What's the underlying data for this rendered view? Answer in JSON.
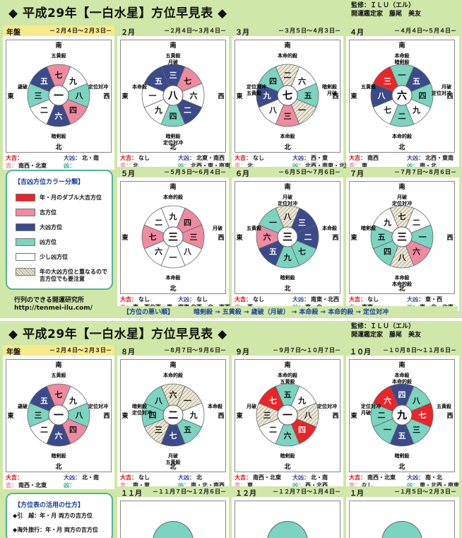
{
  "sheets": [
    {
      "title": "◆ 平成29年【一白水星】方位早見表 ◆",
      "supervisor_line1": "監修：ＩＬＵ（エル）",
      "supervisor_line2": "開運鑑定家　藤尾　美友"
    },
    {
      "title": "◆ 平成29年【一白水星】方位早見表 ◆",
      "supervisor_line1": "監修：ＩＬＵ（エル）",
      "supervisor_line2": "開運鑑定家　藤尾　美友"
    }
  ],
  "compass": {
    "north": "北",
    "south": "南",
    "east": "東",
    "west": "西"
  },
  "luck_keys": {
    "daikichi": "大吉：",
    "kichi": "吉：",
    "daikyo": "大凶：",
    "kyo": "凶："
  },
  "cells": [
    {
      "label": "年盤",
      "range": "－２月４日～２月３日－",
      "center": "一",
      "sectors": [
        "六",
        "二",
        "三",
        "五",
        "七",
        "九",
        "八",
        "四"
      ],
      "colors": [
        "navy",
        "white",
        "teal",
        "navy",
        "pink",
        "white",
        "teal",
        "pink"
      ],
      "daikichi": "",
      "kichi": "南西・北東",
      "daikyo": "北・南",
      "kyo": "",
      "labels": {
        "n": "暗剣殺",
        "s": "五黄殺",
        "e": "歳破",
        "w": "定位対冲"
      }
    },
    {
      "label": "２月",
      "range": "－２月４日～３月４日－",
      "center": "八",
      "sectors": [
        "四",
        "九",
        "一",
        "五",
        "三",
        "七",
        "六",
        "二"
      ],
      "colors": [
        "teal",
        "white",
        "white",
        "navy",
        "navy",
        "pink",
        "white",
        "navy"
      ],
      "daikichi": "なし",
      "kichi": "北",
      "daikyo": "北東・南西",
      "kyo": "北西・東・南東",
      "labels": {
        "n": "暗剣殺 定位対冲",
        "s": "五黄殺 月破",
        "e": "本命殺",
        "w": ""
      }
    },
    {
      "label": "３月",
      "range": "－３月５日～４月３日－",
      "center": "七",
      "sectors": [
        "三",
        "八",
        "九",
        "四",
        "二",
        "六",
        "五",
        "一"
      ],
      "colors": [
        "pink",
        "white",
        "navy",
        "teal",
        "hatch",
        "white",
        "teal",
        "hatch"
      ],
      "daikichi": "なし",
      "kichi": "北",
      "daikyo": "西・東",
      "kyo": "北西・南東・北東",
      "labels": {
        "n": "本命殺",
        "s": "本命的殺",
        "e": "定位対冲 五黄殺",
        "w": "暗剣殺 月破"
      }
    },
    {
      "label": "４月",
      "range": "－４月４日～５月４日－",
      "center": "六",
      "sectors": [
        "二",
        "七",
        "八",
        "三",
        "一",
        "五",
        "四",
        "九"
      ],
      "colors": [
        "teal",
        "white",
        "navy",
        "red",
        "teal",
        "navy",
        "teal",
        "white"
      ],
      "daikichi": "南西",
      "kichi": "東",
      "daikyo": "北西・東南",
      "kyo": "南・北",
      "labels": {
        "n": "本命的殺",
        "s": "本命殺 暗剣殺",
        "e": "五黄殺",
        "w": "月破 定位対冲"
      }
    },
    {
      "label": "５月",
      "range": "－５月５日～６月４日－",
      "center": "三",
      "sectors": [
        "一",
        "六",
        "七",
        "二",
        "九",
        "四",
        "三",
        "八"
      ],
      "colors": [
        "white",
        "white",
        "pink",
        "white",
        "white",
        "pink",
        "pink",
        "white"
      ],
      "daikichi": "なし",
      "kichi": "南・西北西・東・東南",
      "daikyo": "なし",
      "kyo": "北西・北・南西",
      "labels": {
        "n": "本命殺",
        "s": "本命的殺",
        "e": "",
        "w": "月破"
      }
    },
    {
      "label": "６月",
      "range": "－６月５日～７月６日－",
      "center": "三",
      "sectors": [
        "九",
        "五",
        "六",
        "一",
        "八",
        "三",
        "二",
        "七"
      ],
      "colors": [
        "teal",
        "navy",
        "pink",
        "teal",
        "hatch",
        "navy",
        "navy",
        "teal"
      ],
      "daikichi": "なし",
      "kichi": "西",
      "daikyo": "南東・北西",
      "kyo": "南・北",
      "labels": {
        "n": "暗剣殺",
        "s": "月破 定位対冲",
        "e": "五黄殺",
        "w": "本命殺"
      }
    },
    {
      "label": "７月",
      "range": "－７月７日～８月６日－",
      "center": "三",
      "sectors": [
        "八",
        "四",
        "五",
        "九",
        "七",
        "二",
        "一",
        "六"
      ],
      "colors": [
        "hatch",
        "teal",
        "teal",
        "white",
        "hatch",
        "white",
        "teal",
        "pink"
      ],
      "daikichi": "なし",
      "kichi": "南東",
      "daikyo": "東・西",
      "kyo": "南・北・北東",
      "labels": {
        "n": "本命殺 本命的殺",
        "s": "月破 定位対冲",
        "e": "暗剣殺",
        "w": ""
      }
    },
    {
      "label": "年盤",
      "range": "－２月４日～２月３日－",
      "center": "一",
      "sectors": [
        "六",
        "二",
        "三",
        "五",
        "七",
        "九",
        "八",
        "四"
      ],
      "colors": [
        "navy",
        "white",
        "teal",
        "navy",
        "pink",
        "white",
        "teal",
        "pink"
      ],
      "daikichi": "",
      "kichi": "南西・北東",
      "daikyo": "北・南",
      "kyo": "",
      "labels": {
        "n": "暗剣殺",
        "s": "五黄殺",
        "e": "歳破",
        "w": "定位対冲"
      }
    },
    {
      "label": "８月",
      "range": "－８月７日～９月６日－",
      "center": "二",
      "sectors": [
        "七",
        "三",
        "四",
        "八",
        "六",
        "一",
        "九",
        "五"
      ],
      "colors": [
        "navy",
        "hatch",
        "teal",
        "teal",
        "hatch",
        "hatch",
        "white",
        "teal"
      ],
      "daikichi": "なし",
      "kichi": "南・東",
      "daikyo": "北",
      "kyo": "南・北・南西",
      "labels": {
        "n": "月破 五黄殺",
        "s": "本命的殺",
        "e": "暗剣殺 定位対冲",
        "w": "本命殺"
      }
    },
    {
      "label": "９月",
      "range": "－９月７日～１０月７日－",
      "center": "一",
      "sectors": [
        "六",
        "二",
        "三",
        "七",
        "五",
        "九",
        "八",
        "四"
      ],
      "colors": [
        "teal",
        "white",
        "hatch",
        "red",
        "teal",
        "white",
        "hatch",
        "red"
      ],
      "daikichi": "南西・北東",
      "kichi": "東",
      "daikyo": "北・南",
      "kyo": "西・北西",
      "labels": {
        "n": "暗剣殺",
        "s": "本命的殺 五黄殺",
        "e": "月破",
        "w": "定位対冲"
      }
    },
    {
      "label": "１０月",
      "range": "－１０月８日～１１月６日－",
      "center": "九",
      "sectors": [
        "五",
        "一",
        "二",
        "六",
        "四",
        "八",
        "七",
        "三"
      ],
      "colors": [
        "navy",
        "teal",
        "teal",
        "red",
        "navy",
        "teal",
        "red",
        "teal"
      ],
      "daikichi": "南西・北東",
      "kichi": "なし",
      "daikyo": "南・北",
      "kyo": "東・北西・南東",
      "labels": {
        "n": "暗剣殺",
        "s": "本命殺 本命的殺",
        "e": "定位対冲 月破",
        "w": "五黄殺"
      }
    }
  ],
  "partial_cells": [
    {
      "label": "１１月",
      "range": "－１１月７日～１２月６日－"
    },
    {
      "label": "１２月",
      "range": "－１２月７日～１月４日－"
    },
    {
      "label": "１月",
      "range": "－１月５日～２月３日－"
    }
  ],
  "legend": {
    "title": "【吉凶方位カラー分類】",
    "items": [
      {
        "label": "年・月のダブル大吉方位",
        "color": "#e8262a"
      },
      {
        "label": "吉方位",
        "color": "#ef8aa0"
      },
      {
        "label": "大凶方位",
        "color": "#3b4a8a"
      },
      {
        "label": "凶方位",
        "color": "#7bd3c0"
      },
      {
        "label": "少し凶方位",
        "color": "#ffffff"
      },
      {
        "label": "年の大凶方位と重なるので\n吉方位でも要注意",
        "color": "hatch"
      }
    ]
  },
  "credit": {
    "line1": "行列のできる開運研究所",
    "line2": "http://tenmei-ilu.com/"
  },
  "worst": {
    "title": "【方位の悪い順】",
    "value": "暗剣殺 → 五黄殺 → 歳破（月破） → 本命殺 → 本命的殺 → 定位対冲"
  },
  "usage": {
    "title": "【方位表の活用の仕方】",
    "items": [
      "◆引　越：年・月 両方の吉方位",
      "◆海外旅行：年・月 両方の吉方位"
    ]
  },
  "colors": {
    "red": "#e8262a",
    "pink": "#ef8aa0",
    "navy": "#3b4a8a",
    "teal": "#7bd3c0",
    "white": "#ffffff",
    "header": "#cfe7a8",
    "year_header": "#f6ea8c"
  }
}
